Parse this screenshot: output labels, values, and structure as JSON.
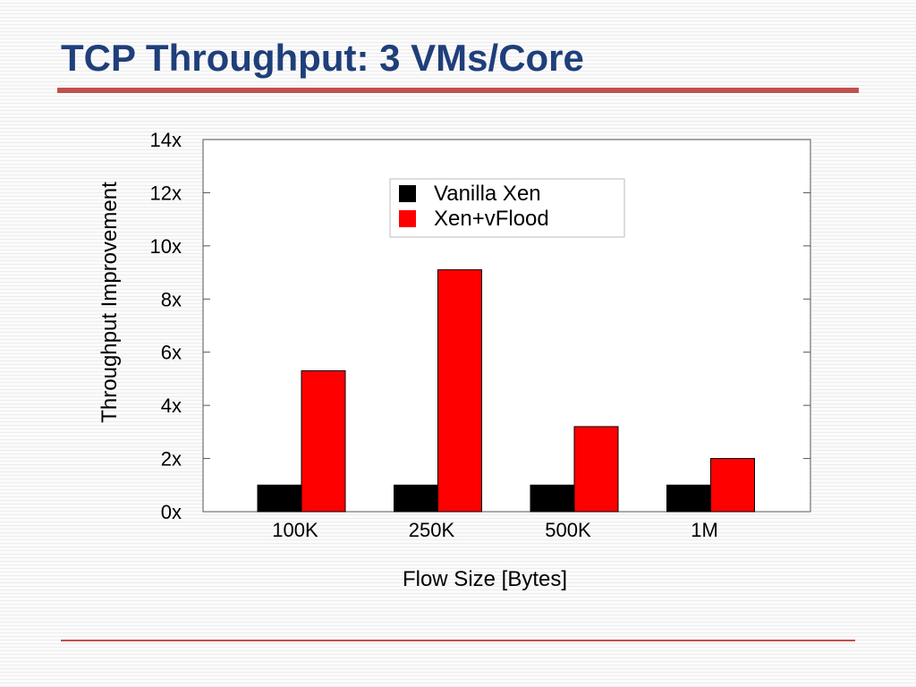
{
  "slide": {
    "title": "TCP Throughput: 3 VMs/Core"
  },
  "colors": {
    "title": "#1f3f7a",
    "rule": "#c0504d",
    "vanilla": "#000000",
    "vflood": "#ff0000"
  },
  "chart_data": {
    "type": "bar",
    "title": "",
    "xlabel": "Flow Size [Bytes]",
    "ylabel": "Throughput Improvement",
    "categories": [
      "100K",
      "250K",
      "500K",
      "1M"
    ],
    "series": [
      {
        "name": "Vanilla Xen",
        "values": [
          1,
          1,
          1,
          1
        ],
        "color": "#000000"
      },
      {
        "name": "Xen+vFlood",
        "values": [
          5.3,
          9.1,
          3.2,
          2.0
        ],
        "color": "#ff0000"
      }
    ],
    "ylim": [
      0,
      14
    ],
    "yticks": [
      0,
      2,
      4,
      6,
      8,
      10,
      12,
      14
    ],
    "ytick_labels": [
      "0x",
      "2x",
      "4x",
      "6x",
      "8x",
      "10x",
      "12x",
      "14x"
    ],
    "grid": false,
    "legend": "top-center"
  }
}
